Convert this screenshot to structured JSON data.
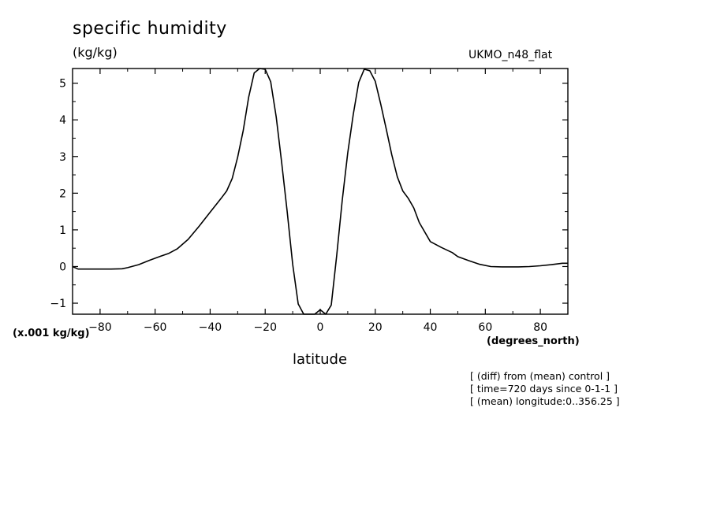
{
  "header": {
    "title": "specific humidity",
    "units": "(kg/kg)",
    "model": "UKMO_n48_flat",
    "scale_note": "(x.001 kg/kg)",
    "x_units": "(degrees_north)"
  },
  "notes": [
    "[ (diff) from (mean) control ]",
    "[ time=720 days since 0-1-1 ]",
    "[ (mean) longitude:0..356.25 ]"
  ],
  "colors": {
    "line": "#000000",
    "background": "#ffffff"
  },
  "chart_data": {
    "type": "line",
    "title": "specific humidity",
    "xlabel": "latitude",
    "ylabel": "(kg/kg)",
    "xlim": [
      -90,
      90
    ],
    "ylim": [
      -1.3,
      5.4
    ],
    "xticks": [
      -80,
      -60,
      -40,
      -20,
      0,
      20,
      40,
      60,
      80
    ],
    "xtick_labels": [
      "-80",
      "-60",
      "-40",
      "-20",
      "0",
      "20",
      "40",
      "60",
      "80"
    ],
    "yticks": [
      -1,
      0,
      1,
      2,
      3,
      4,
      5
    ],
    "ytick_labels": [
      "-1",
      "0",
      "1",
      "2",
      "3",
      "4",
      "5"
    ],
    "grid": false,
    "series": [
      {
        "x": [
          -90,
          -88,
          -84,
          -80,
          -76,
          -72,
          -70,
          -66,
          -62,
          -58,
          -55,
          -52,
          -48,
          -44,
          -40,
          -36,
          -34,
          -32,
          -30,
          -28,
          -26,
          -24,
          -22,
          -20,
          -18,
          -16,
          -14,
          -12,
          -10,
          -8,
          -6,
          -4,
          -2,
          0,
          2,
          4,
          6,
          8,
          10,
          12,
          14,
          16,
          18,
          20,
          22,
          24,
          26,
          28,
          30,
          32,
          34,
          36,
          40,
          44,
          48,
          50,
          54,
          58,
          62,
          66,
          70,
          72,
          76,
          80,
          84,
          88,
          90
        ],
        "y": [
          0.0,
          -0.07,
          -0.07,
          -0.07,
          -0.07,
          -0.06,
          -0.03,
          0.05,
          0.17,
          0.28,
          0.36,
          0.48,
          0.74,
          1.1,
          1.48,
          1.86,
          2.06,
          2.4,
          2.98,
          3.7,
          4.62,
          5.28,
          5.4,
          5.38,
          5.04,
          4.08,
          2.82,
          1.5,
          0.06,
          -1.02,
          -1.3,
          -1.3,
          -1.3,
          -1.18,
          -1.3,
          -1.05,
          0.3,
          1.8,
          3.1,
          4.15,
          5.02,
          5.38,
          5.34,
          5.05,
          4.42,
          3.75,
          3.05,
          2.45,
          2.06,
          1.86,
          1.6,
          1.2,
          0.68,
          0.52,
          0.38,
          0.27,
          0.16,
          0.06,
          0.0,
          -0.01,
          -0.01,
          -0.01,
          0.0,
          0.02,
          0.05,
          0.09,
          0.09
        ]
      }
    ]
  }
}
